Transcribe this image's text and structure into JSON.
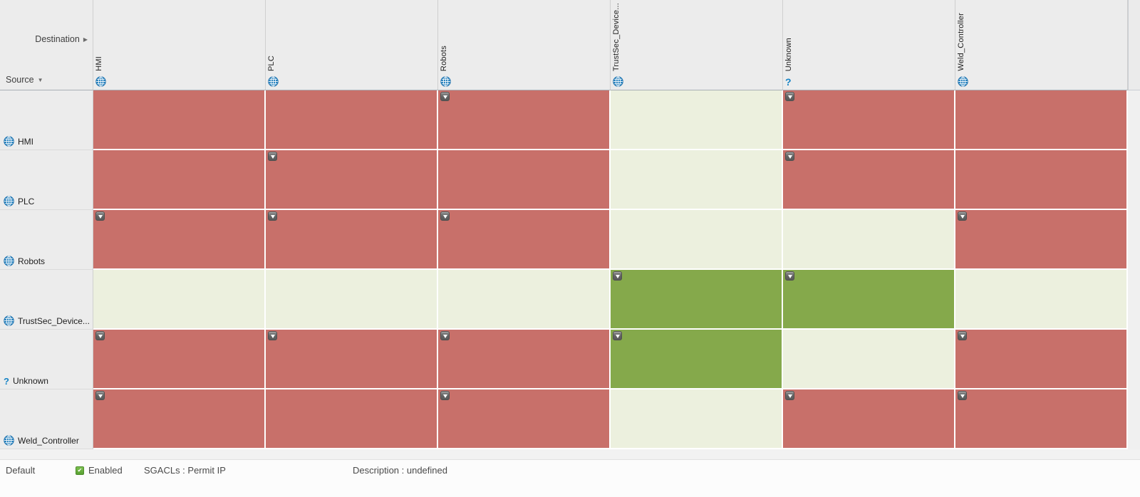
{
  "header": {
    "destination_label": "Destination",
    "source_label": "Source",
    "destination_arrow_icon": "triangle-right",
    "source_arrow_icon": "triangle-down",
    "columns": [
      {
        "label": "HMI",
        "icon": "globe"
      },
      {
        "label": "PLC",
        "icon": "globe"
      },
      {
        "label": "Robots",
        "icon": "globe"
      },
      {
        "label": "TrustSec_Device...",
        "icon": "globe"
      },
      {
        "label": "Unknown",
        "icon": "question"
      },
      {
        "label": "Weld_Controller",
        "icon": "globe"
      }
    ]
  },
  "rows": [
    {
      "label": "HMI",
      "icon": "globe",
      "cells": [
        {
          "status": "deny",
          "arrow": false
        },
        {
          "status": "deny",
          "arrow": false
        },
        {
          "status": "deny",
          "arrow": true
        },
        {
          "status": "default",
          "arrow": false
        },
        {
          "status": "deny",
          "arrow": true
        },
        {
          "status": "deny",
          "arrow": false
        }
      ]
    },
    {
      "label": "PLC",
      "icon": "globe",
      "cells": [
        {
          "status": "deny",
          "arrow": false
        },
        {
          "status": "deny",
          "arrow": true
        },
        {
          "status": "deny",
          "arrow": false
        },
        {
          "status": "default",
          "arrow": false
        },
        {
          "status": "deny",
          "arrow": true
        },
        {
          "status": "deny",
          "arrow": false
        }
      ]
    },
    {
      "label": "Robots",
      "icon": "globe",
      "cells": [
        {
          "status": "deny",
          "arrow": true
        },
        {
          "status": "deny",
          "arrow": true
        },
        {
          "status": "deny",
          "arrow": true
        },
        {
          "status": "default",
          "arrow": false
        },
        {
          "status": "default",
          "arrow": false
        },
        {
          "status": "deny",
          "arrow": true
        }
      ]
    },
    {
      "label": "TrustSec_Device...",
      "icon": "globe",
      "cells": [
        {
          "status": "default",
          "arrow": false
        },
        {
          "status": "default",
          "arrow": false
        },
        {
          "status": "default",
          "arrow": false
        },
        {
          "status": "permit",
          "arrow": true
        },
        {
          "status": "permit",
          "arrow": true
        },
        {
          "status": "default",
          "arrow": false
        }
      ]
    },
    {
      "label": "Unknown",
      "icon": "question",
      "cells": [
        {
          "status": "deny",
          "arrow": true
        },
        {
          "status": "deny",
          "arrow": true
        },
        {
          "status": "deny",
          "arrow": true
        },
        {
          "status": "permit",
          "arrow": true
        },
        {
          "status": "default",
          "arrow": false
        },
        {
          "status": "deny",
          "arrow": true
        }
      ]
    },
    {
      "label": "Weld_Controller",
      "icon": "globe",
      "cells": [
        {
          "status": "deny",
          "arrow": true
        },
        {
          "status": "deny",
          "arrow": false
        },
        {
          "status": "deny",
          "arrow": true
        },
        {
          "status": "default",
          "arrow": false
        },
        {
          "status": "deny",
          "arrow": true
        },
        {
          "status": "deny",
          "arrow": true
        }
      ]
    }
  ],
  "colors": {
    "deny": "#C8706A",
    "default": "#ECF0DE",
    "permit": "#85A94B",
    "header_bg": "#ECECEC",
    "link_blue": "#1B82C5",
    "checkbox_green": "#58A032"
  },
  "status_bar": {
    "policy_name": "Default",
    "enabled_label": "Enabled",
    "enabled_icon": "checkbox-checked",
    "sgacls_text": "SGACLs : Permit IP",
    "description_text": "Description : undefined"
  }
}
